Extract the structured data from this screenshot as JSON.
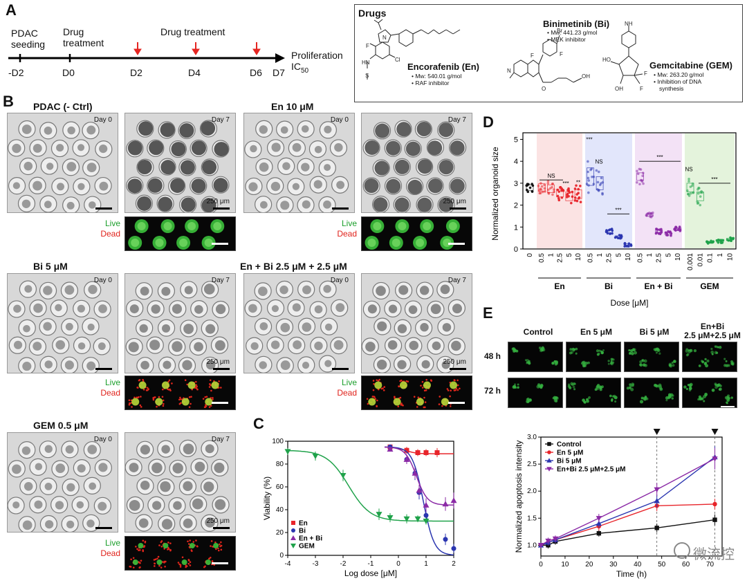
{
  "panel_labels": {
    "A": "A",
    "B": "B",
    "C": "C",
    "D": "D",
    "E": "E"
  },
  "timeline": {
    "pdac_seeding": "PDAC\nseeding",
    "drug_treatment1": "Drug\ntreatment",
    "drug_treatment2": "Drug treatment",
    "proliferation": "Proliferation",
    "ic50_base": "IC",
    "ic50_sub": "50",
    "days": [
      "-D2",
      "D0",
      "D2",
      "D4",
      "D6",
      "D7"
    ]
  },
  "drugs": {
    "header": "Drugs",
    "encorafenib": {
      "name": "Encorafenib (En)",
      "mw": "• Mw: 540.01 g/mol",
      "info": "• RAF inhibitor"
    },
    "binimetinib": {
      "name": "Binimetinib (Bi)",
      "mw": "• Mw: 441.23 g/mol",
      "info": "• MEK inhibitor"
    },
    "gemcitabine": {
      "name": "Gemcitabine (GEM)",
      "mw": "• Mw: 263.20 g/mol",
      "info1": "• Inhibition of DNA",
      "info2": "synthesis"
    },
    "atoms": {
      "F": "F",
      "Cl": "Cl",
      "N": "N",
      "NH": "N",
      "H": "H",
      "O": "O",
      "S": "S",
      "Br": "Br",
      "NH2": "NH",
      "OH": "OH",
      "HO": "HO",
      "HN": "HN"
    }
  },
  "panel_b": {
    "conditions": [
      {
        "title": "PDAC (- Ctrl)"
      },
      {
        "title": "En 10 μM"
      },
      {
        "title": "Bi 5 μM"
      },
      {
        "title": "En + Bi 2.5 μM + 2.5 μM"
      },
      {
        "title": "GEM 0.5 μM"
      }
    ],
    "day0": "Day 0",
    "day7": "Day 7",
    "scale": "250 μm",
    "live": "Live",
    "dead": "Dead"
  },
  "colors": {
    "en": "#e8242a",
    "bi": "#2b36b0",
    "enbi": "#8b2aa6",
    "gem": "#1fa24a",
    "black": "#111111"
  },
  "chart_data": [
    {
      "id": "C",
      "type": "scatter",
      "xlabel": "Log dose [μM]",
      "ylabel": "Viability (%)",
      "xlim": [
        -4,
        2
      ],
      "ylim": [
        0,
        100
      ],
      "xticks": [
        -4,
        -3,
        -2,
        -1,
        0,
        1,
        2
      ],
      "yticks": [
        0,
        20,
        40,
        60,
        80,
        100
      ],
      "legend_placement": "bottom-left",
      "series": [
        {
          "name": "En",
          "marker": "square",
          "x": [
            -0.3,
            0.3,
            0.7,
            1.0,
            1.4
          ],
          "y": [
            95,
            92,
            90,
            90,
            90
          ],
          "err": [
            2,
            3,
            3,
            3,
            4
          ],
          "fit_top": 95,
          "fit_bottom": 89,
          "fit_ic50": 0.25
        },
        {
          "name": "Bi",
          "marker": "circle",
          "x": [
            -0.3,
            0.3,
            0.6,
            0.75,
            1.0,
            1.7,
            2.0
          ],
          "y": [
            95,
            84,
            72,
            55,
            35,
            14,
            6
          ],
          "err": [
            2,
            4,
            6,
            6,
            5,
            5,
            4
          ],
          "fit_top": 95,
          "fit_bottom": 0,
          "fit_ic50": 0.9
        },
        {
          "name": "En + Bi",
          "marker": "triangle-up",
          "x": [
            -0.3,
            0.3,
            0.6,
            0.75,
            1.0,
            1.7,
            2.0
          ],
          "y": [
            93,
            84,
            72,
            57,
            44,
            45,
            48
          ],
          "err": [
            2,
            4,
            5,
            5,
            6,
            6,
            7
          ],
          "fit_top": 95,
          "fit_bottom": 44,
          "fit_ic50": 0.65
        },
        {
          "name": "GEM",
          "marker": "triangle-down",
          "x": [
            -4,
            -3,
            -2,
            -0.7,
            -0.3,
            0.3,
            0.7,
            1.0
          ],
          "y": [
            91,
            87,
            70,
            36,
            33,
            32,
            32,
            30
          ],
          "err": [
            3,
            4,
            5,
            5,
            4,
            4,
            3,
            3
          ],
          "fit_top": 92,
          "fit_bottom": 30,
          "fit_ic50": -1.8
        }
      ]
    },
    {
      "id": "D",
      "type": "scatter",
      "ylabel": "Normalized organoid size",
      "xlabel": "Dose [μM]",
      "ylim": [
        0,
        5.3
      ],
      "yticks": [
        0,
        1,
        2,
        3,
        4,
        5
      ],
      "groups": [
        {
          "name": "",
          "bg": "",
          "doses": [
            "0"
          ],
          "means": [
            2.8
          ],
          "spread": [
            0.25
          ]
        },
        {
          "name": "En",
          "bg": "#fbe3e3",
          "doses": [
            "0.5",
            "1",
            "2.5",
            "5",
            "10"
          ],
          "means": [
            2.8,
            2.75,
            2.55,
            2.4,
            2.5
          ],
          "spread": [
            0.35,
            0.35,
            0.35,
            0.4,
            0.4
          ],
          "sig": [
            "NS",
            "",
            "***",
            "**"
          ]
        },
        {
          "name": "Bi",
          "bg": "#e2e6fb",
          "doses": [
            "0.5",
            "1",
            "2.5",
            "5",
            "10"
          ],
          "means": [
            3.3,
            3.0,
            0.8,
            0.55,
            0.2
          ],
          "spread": [
            0.8,
            0.6,
            0.12,
            0.1,
            0.08
          ],
          "sig": [
            "***",
            "NS",
            "***"
          ]
        },
        {
          "name": "En + Bi",
          "bg": "#f3e2f6",
          "doses": [
            "0.5",
            "1",
            "2.5",
            "5",
            "10"
          ],
          "means": [
            3.3,
            1.55,
            0.8,
            0.7,
            0.9
          ],
          "spread": [
            0.35,
            0.12,
            0.12,
            0.1,
            0.12
          ],
          "sig": [
            "***"
          ]
        },
        {
          "name": "GEM",
          "bg": "#e4f3dc",
          "doses": [
            "0.001",
            "0.01",
            "0.1",
            "1",
            "10"
          ],
          "means": [
            2.8,
            2.4,
            0.3,
            0.35,
            0.45
          ],
          "spread": [
            0.4,
            0.4,
            0.07,
            0.08,
            0.08
          ],
          "sig": [
            "NS",
            "***"
          ]
        }
      ]
    },
    {
      "id": "E",
      "type": "line",
      "xlabel": "Time (h)",
      "ylabel": "Normalized apoptosis intensity",
      "xlim": [
        0,
        75
      ],
      "ylim": [
        0.8,
        3.0
      ],
      "xticks": [
        0,
        10,
        20,
        30,
        40,
        50,
        60,
        70
      ],
      "yticks": [
        1.0,
        1.5,
        2.0,
        2.5,
        3.0
      ],
      "markers_at": [
        48,
        72
      ],
      "legend_placement": "top-left",
      "series": [
        {
          "name": "Control",
          "marker": "square",
          "x": [
            0,
            3,
            6,
            24,
            48,
            72
          ],
          "y": [
            1.0,
            1.0,
            1.07,
            1.22,
            1.32,
            1.47
          ],
          "err": [
            0.04,
            0.06,
            0.06,
            0.06,
            0.08,
            0.1
          ]
        },
        {
          "name": "En 5 μM",
          "marker": "circle",
          "x": [
            0,
            3,
            6,
            24,
            48,
            72
          ],
          "y": [
            1.0,
            1.05,
            1.1,
            1.35,
            1.73,
            1.76
          ],
          "err": [
            0.04,
            0.06,
            0.06,
            0.08,
            0.1,
            0.1
          ]
        },
        {
          "name": "Bi 5 μM",
          "marker": "triangle-up",
          "x": [
            0,
            3,
            6,
            24,
            48,
            72
          ],
          "y": [
            1.0,
            1.05,
            1.1,
            1.4,
            1.82,
            2.63
          ],
          "err": [
            0.04,
            0.06,
            0.06,
            0.08,
            0.12,
            0.2
          ]
        },
        {
          "name": "En+Bi 2.5 μM+2.5 μM",
          "marker": "triangle-down",
          "x": [
            0,
            3,
            6,
            24,
            48,
            72
          ],
          "y": [
            1.0,
            1.08,
            1.12,
            1.5,
            2.03,
            2.6
          ],
          "err": [
            0.04,
            0.06,
            0.06,
            0.08,
            0.12,
            0.2
          ]
        }
      ]
    }
  ],
  "panel_e_images": {
    "columns": [
      "Control",
      "En 5 μM",
      "Bi 5 μM",
      "En+Bi\n2.5 μM+2.5 μM"
    ],
    "rows": [
      "48 h",
      "72 h"
    ]
  },
  "watermark": "微流控"
}
